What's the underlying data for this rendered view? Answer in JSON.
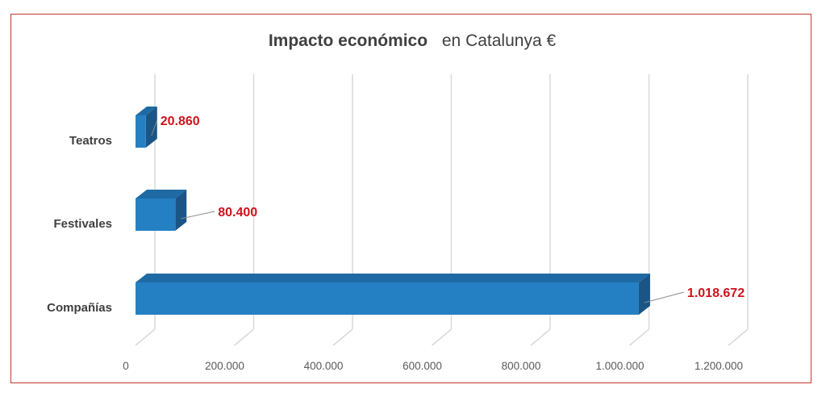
{
  "chart_data": {
    "type": "bar",
    "orientation": "horizontal",
    "title_bold": "Impacto económico",
    "title_rest": "en Catalunya €",
    "categories": [
      "Compañías",
      "Festivales",
      "Teatros"
    ],
    "values": [
      1018672,
      80400,
      20860
    ],
    "value_labels": [
      "1.018.672",
      "80.400",
      "20.860"
    ],
    "xlim": [
      0,
      1200000
    ],
    "x_ticks": [
      0,
      200000,
      400000,
      600000,
      800000,
      1000000,
      1200000
    ],
    "x_tick_labels": [
      "0",
      "200.000",
      "400.000",
      "600.000",
      "800.000",
      "1.000.000",
      "1.200.000"
    ],
    "grid": true,
    "bar_style": "3d",
    "colors": {
      "bar_front": "#2580c3",
      "bar_top": "#1f6aa4",
      "bar_side": "#1a5585",
      "value_label": "#d0121b",
      "axis_text": "#595959",
      "category_text": "#3f3f3f",
      "grid": "#d9d9d9",
      "border": "#c0392b"
    }
  }
}
